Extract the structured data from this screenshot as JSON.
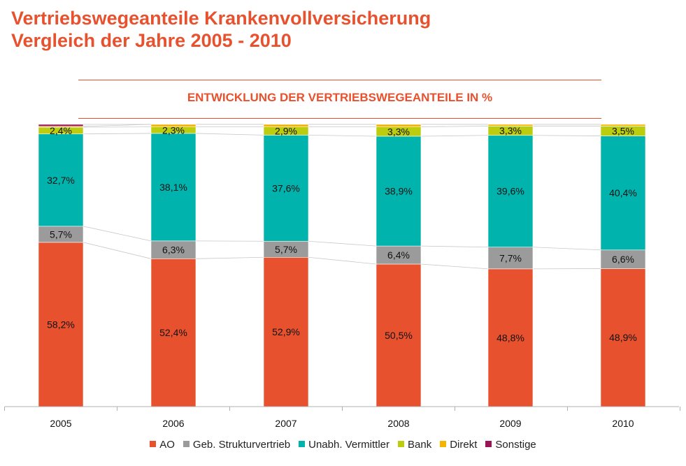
{
  "title": {
    "line1": "Vertriebswegeanteile Krankenvollversicherung",
    "line2": "Vergleich der Jahre 2005 - 2010"
  },
  "subtitle": "ENTWICKLUNG DER VERTRIEBSWEGEANTEILE IN %",
  "chart_data": {
    "type": "bar",
    "stacked": true,
    "categories": [
      "2005",
      "2006",
      "2007",
      "2008",
      "2009",
      "2010"
    ],
    "series": [
      {
        "name": "AO",
        "color": "#e8512e",
        "values": [
          58.2,
          52.4,
          52.9,
          50.5,
          48.8,
          48.9
        ],
        "labels": [
          "58,2%",
          "52,4%",
          "52,9%",
          "50,5%",
          "48,8%",
          "48,9%"
        ]
      },
      {
        "name": "Geb. Strukturvertrieb",
        "color": "#9b9b9b",
        "values": [
          5.7,
          6.3,
          5.7,
          6.4,
          7.7,
          6.6
        ],
        "labels": [
          "5,7%",
          "6,3%",
          "5,7%",
          "6,4%",
          "7,7%",
          "6,6%"
        ]
      },
      {
        "name": "Unabh. Vermittler",
        "color": "#00b3ad",
        "values": [
          32.7,
          38.1,
          37.6,
          38.9,
          39.6,
          40.4
        ],
        "labels": [
          "32,7%",
          "38,1%",
          "37,6%",
          "38,9%",
          "39,6%",
          "40,4%"
        ]
      },
      {
        "name": "Bank",
        "color": "#bccd10",
        "values": [
          2.4,
          2.3,
          2.9,
          3.3,
          3.3,
          3.5
        ],
        "labels": [
          "2,4%",
          "2,3%",
          "2,9%",
          "3,3%",
          "3,3%",
          "3,5%"
        ]
      },
      {
        "name": "Direkt",
        "color": "#f5b400",
        "values": [
          0.3,
          0.9,
          0.9,
          0.9,
          0.6,
          0.6
        ],
        "labels": [
          "",
          "",
          "",
          "",
          "",
          ""
        ]
      },
      {
        "name": "Sonstige",
        "color": "#9b1456",
        "values": [
          0.7,
          0.0,
          0.0,
          0.0,
          0.0,
          0.0
        ],
        "labels": [
          "",
          "",
          "",
          "",
          "",
          ""
        ]
      }
    ],
    "ylim": [
      0,
      100
    ],
    "grid": false,
    "legend_position": "bottom"
  }
}
